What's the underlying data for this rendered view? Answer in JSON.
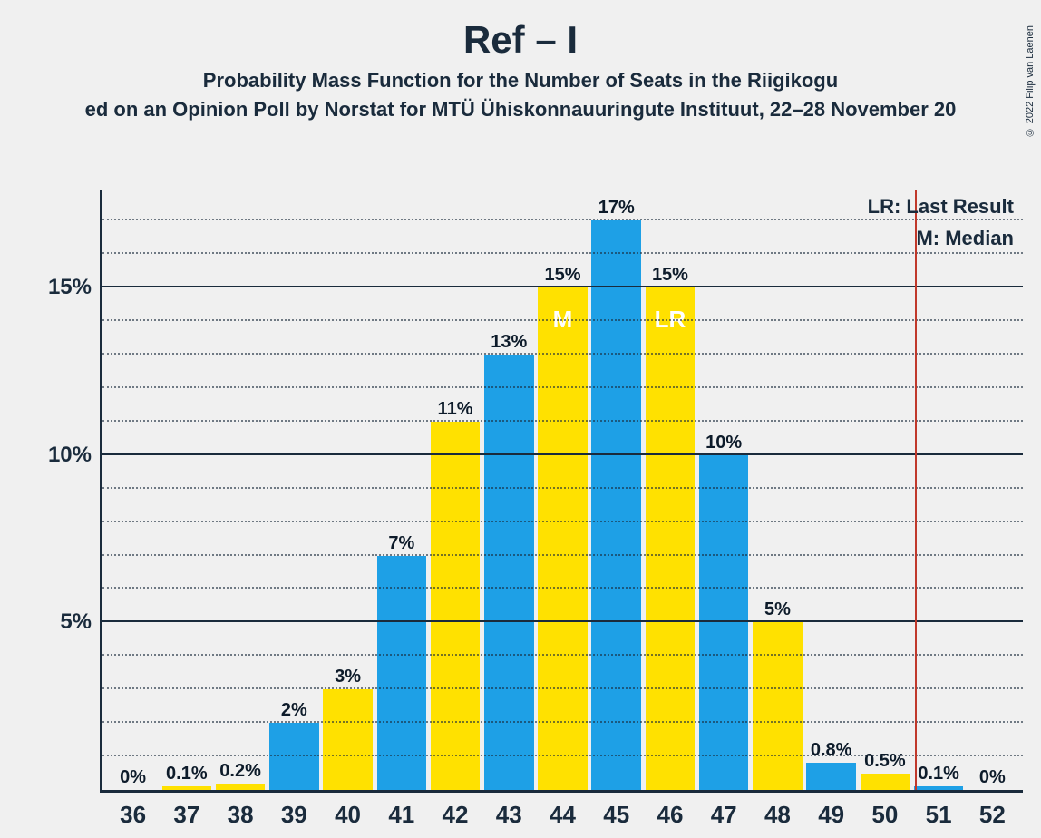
{
  "title": "Ref – I",
  "subtitle": "Probability Mass Function for the Number of Seats in the Riigikogu",
  "subtitle2": "ed on an Opinion Poll by Norstat for MTÜ Ühiskonnauuringute Instituut, 22–28 November 20",
  "copyright": "© 2022 Filip van Laenen",
  "legend": {
    "lr": "LR: Last Result",
    "m": "M: Median"
  },
  "chart": {
    "type": "bar",
    "y_max": 17.9,
    "y_major_ticks": [
      5,
      10,
      15
    ],
    "y_minor_step": 1,
    "y_tick_labels": [
      "5%",
      "10%",
      "15%"
    ],
    "axis_color": "#1a2b3c",
    "grid_color": "#1a2b3c",
    "background": "#f0f0f0",
    "bar_colors": {
      "blue": "#1ea0e6",
      "yellow": "#ffe100"
    },
    "vline_color": "#c0392b",
    "vline_after_index": 14,
    "font_sizes": {
      "title": 42,
      "subtitle": 22,
      "axis": 24,
      "bar_label": 20,
      "x_label": 26,
      "marker": 26,
      "legend": 22
    },
    "bars": [
      {
        "x": "36",
        "value": 0,
        "label": "0%",
        "color": "blue"
      },
      {
        "x": "37",
        "value": 0.1,
        "label": "0.1%",
        "color": "yellow"
      },
      {
        "x": "38",
        "value": 0.2,
        "label": "0.2%",
        "color": "yellow"
      },
      {
        "x": "39",
        "value": 2,
        "label": "2%",
        "color": "blue"
      },
      {
        "x": "40",
        "value": 3,
        "label": "3%",
        "color": "yellow"
      },
      {
        "x": "41",
        "value": 7,
        "label": "7%",
        "color": "blue"
      },
      {
        "x": "42",
        "value": 11,
        "label": "11%",
        "color": "yellow"
      },
      {
        "x": "43",
        "value": 13,
        "label": "13%",
        "color": "blue"
      },
      {
        "x": "44",
        "value": 15,
        "label": "15%",
        "color": "yellow",
        "marker": "M"
      },
      {
        "x": "45",
        "value": 17,
        "label": "17%",
        "color": "blue"
      },
      {
        "x": "46",
        "value": 15,
        "label": "15%",
        "color": "yellow",
        "marker": "LR"
      },
      {
        "x": "47",
        "value": 10,
        "label": "10%",
        "color": "blue"
      },
      {
        "x": "48",
        "value": 5,
        "label": "5%",
        "color": "yellow"
      },
      {
        "x": "49",
        "value": 0.8,
        "label": "0.8%",
        "color": "blue"
      },
      {
        "x": "50",
        "value": 0.5,
        "label": "0.5%",
        "color": "yellow"
      },
      {
        "x": "51",
        "value": 0.1,
        "label": "0.1%",
        "color": "blue"
      },
      {
        "x": "52",
        "value": 0,
        "label": "0%",
        "color": "blue"
      }
    ]
  }
}
